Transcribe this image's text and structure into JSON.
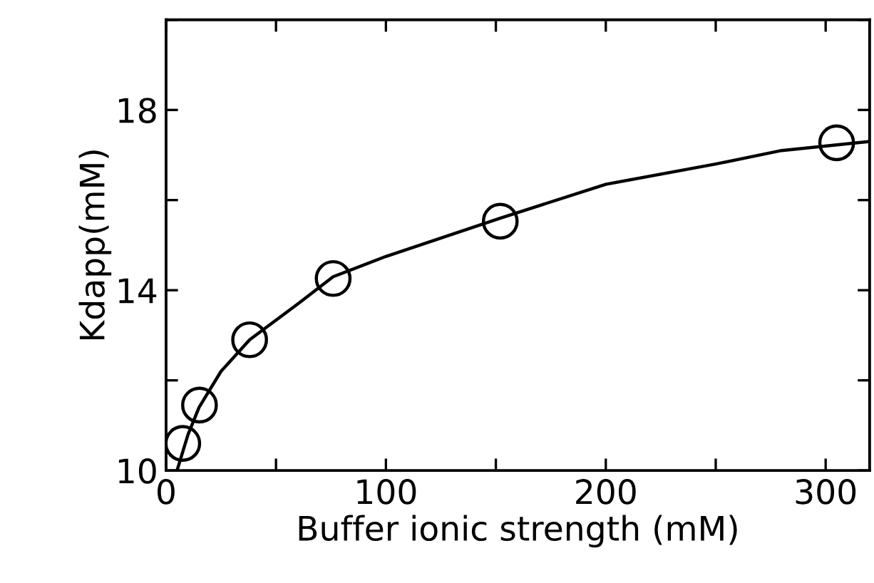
{
  "chart_data": {
    "type": "scatter",
    "xlabel": "Buffer ionic strength (mM)",
    "ylabel": "Kdapp(mM)",
    "xlim": [
      0,
      320
    ],
    "ylim": [
      10,
      20
    ],
    "xticks": [
      0,
      {
        "value": 50,
        "label": null
      },
      100,
      {
        "value": 150,
        "label": null
      },
      200,
      {
        "value": 250,
        "label": null
      },
      300
    ],
    "yticks": [
      10,
      {
        "value": 12,
        "label": null
      },
      14,
      {
        "value": 16,
        "label": null
      },
      18,
      {
        "value": 20,
        "label": null
      }
    ],
    "grid": false,
    "series": [
      {
        "color": "#000000",
        "marker": "circle",
        "x": [
          7.6,
          15.2,
          38,
          76,
          152,
          305
        ],
        "values": [
          10.6,
          11.45,
          12.9,
          14.26,
          15.53,
          17.27
        ]
      },
      {
        "type": "line",
        "color": "#000000",
        "marker": "none",
        "line_style": "solid",
        "x": [
          5,
          10,
          15,
          25,
          38,
          60,
          76,
          100,
          152,
          200,
          250,
          280,
          320
        ],
        "values": [
          10.0,
          10.8,
          11.4,
          12.2,
          12.9,
          13.7,
          14.3,
          14.75,
          15.6,
          16.35,
          16.8,
          17.1,
          17.3
        ]
      }
    ]
  }
}
